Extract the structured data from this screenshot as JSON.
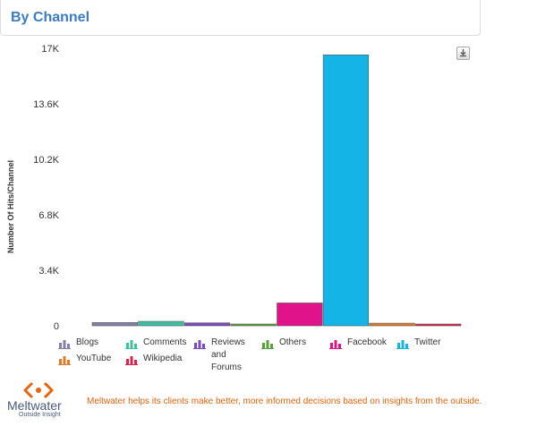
{
  "header": {
    "title": "By Channel"
  },
  "export": {
    "icon": "download-icon"
  },
  "chart_data": {
    "type": "bar",
    "title": "",
    "xlabel": "",
    "ylabel": "Number Of Hits/Channel",
    "ylim": [
      0,
      17000
    ],
    "ytick_labels": [
      "0",
      "3.4K",
      "6.8K",
      "10.2K",
      "13.6K",
      "17K"
    ],
    "ytick_values": [
      0,
      3400,
      6800,
      10200,
      13600,
      17000
    ],
    "grid": false,
    "legend_position": "bottom",
    "series": [
      {
        "name": "Blogs",
        "value": 200,
        "color": "#8080a8"
      },
      {
        "name": "Comments",
        "value": 270,
        "color": "#3dbfa0"
      },
      {
        "name": "Reviews and Forums",
        "value": 180,
        "color": "#7a4bc4"
      },
      {
        "name": "Others",
        "value": 50,
        "color": "#5a9e3a"
      },
      {
        "name": "Facebook",
        "value": 1400,
        "color": "#e0138b"
      },
      {
        "name": "Twitter",
        "value": 16600,
        "color": "#14b4e6"
      },
      {
        "name": "YouTube",
        "value": 160,
        "color": "#e07b26"
      },
      {
        "name": "Wikipedia",
        "value": 70,
        "color": "#e0214e"
      }
    ]
  },
  "legend": {
    "items": [
      {
        "label": "Blogs",
        "color": "#8080a8"
      },
      {
        "label": "Comments",
        "color": "#3dbfa0"
      },
      {
        "label": "Reviews\nand\nForums",
        "color": "#7a4bc4"
      },
      {
        "label": "Others",
        "color": "#5a9e3a"
      },
      {
        "label": "Facebook",
        "color": "#e0138b"
      },
      {
        "label": "Twitter",
        "color": "#14b4e6"
      },
      {
        "label": "YouTube",
        "color": "#e07b26"
      },
      {
        "label": "Wikipedia",
        "color": "#e0214e"
      }
    ]
  },
  "footer": {
    "logo_word": "Meltwater",
    "logo_tagline": "Outside Insight",
    "logo_color": "#e8630a",
    "note": "Meltwater helps its clients make better, more informed decisions based on insights from the outside."
  }
}
